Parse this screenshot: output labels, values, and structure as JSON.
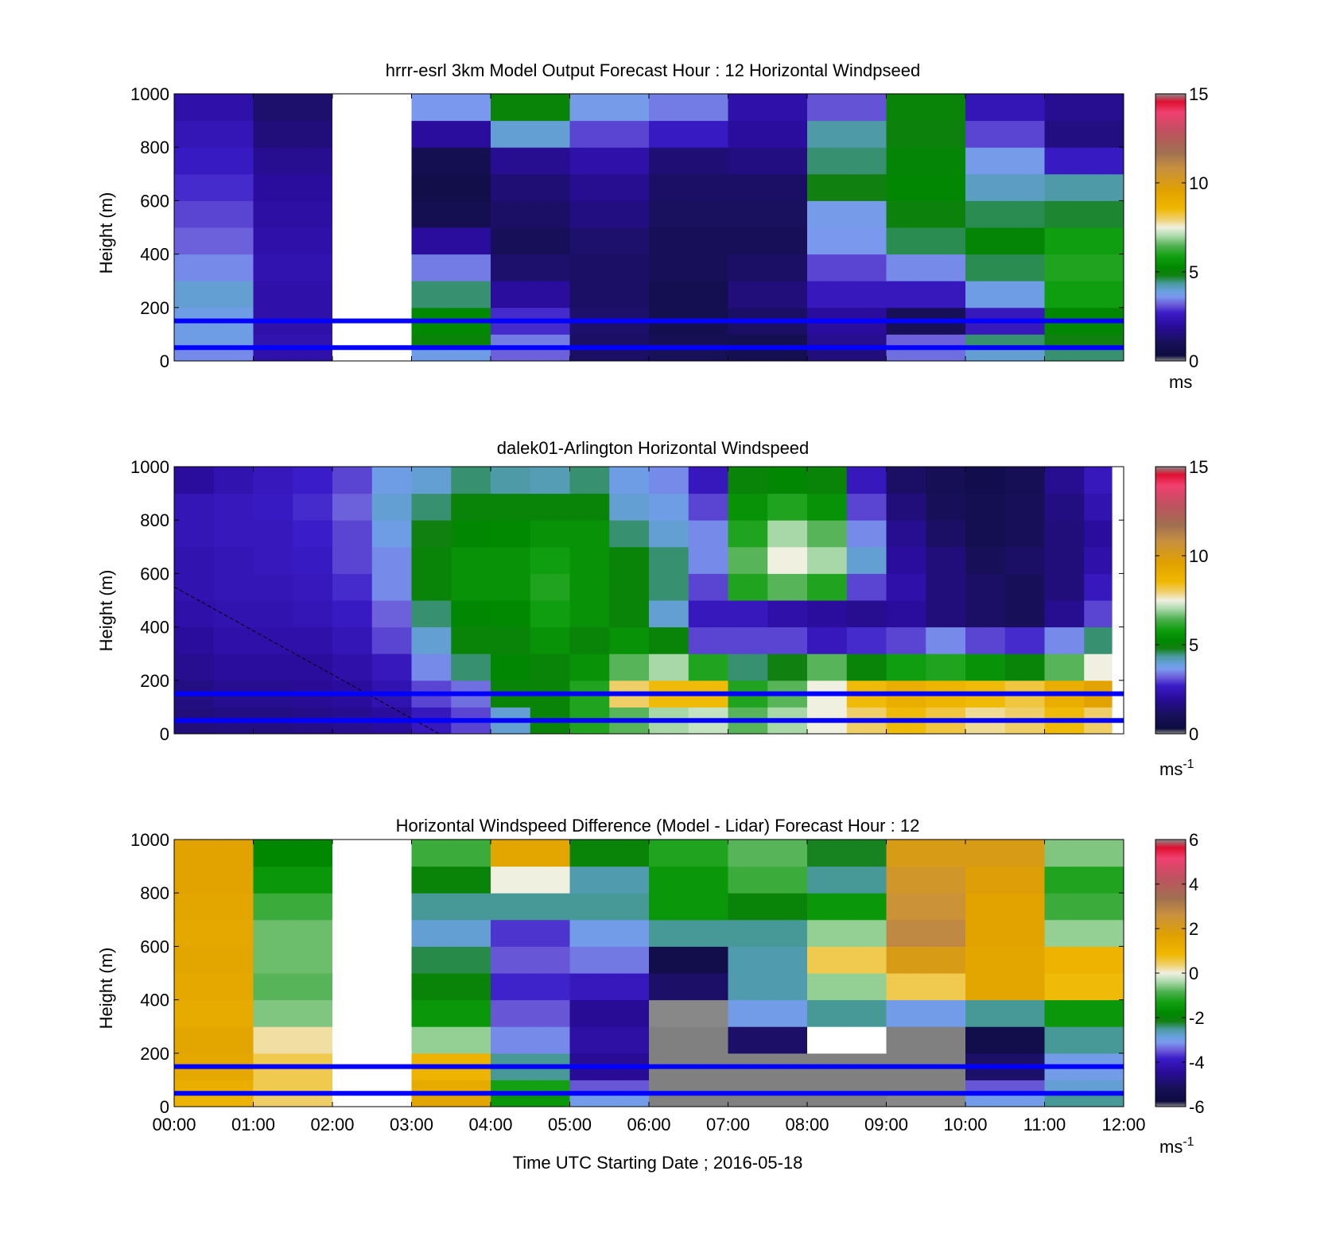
{
  "figure": {
    "date_label": "Time UTC  Starting Date ; 2016-05-18",
    "time_ticks": [
      "00:00",
      "01:00",
      "02:00",
      "03:00",
      "04:00",
      "05:00",
      "06:00",
      "07:00",
      "08:00",
      "09:00",
      "10:00",
      "11:00",
      "12:00"
    ]
  },
  "colors": {
    "reference_lines": "#0000ff",
    "missing_data": "#808080",
    "no_data": "#ffffff"
  },
  "chart_data": [
    {
      "type": "heatmap",
      "title": "hrrr-esrl 3km Model Output   Forecast Hour : 12 Horizontal Windpseed",
      "ylabel": "Height (m)",
      "xlabel": "",
      "xlim": [
        0,
        12
      ],
      "ylim": [
        0,
        1000
      ],
      "y_ticks": [
        "0",
        "200",
        "400",
        "600",
        "800",
        "1000"
      ],
      "grid": false,
      "colorbar": {
        "min": 0,
        "max": 15,
        "ticks": [
          "0",
          "5",
          "10",
          "15"
        ],
        "unit": "ms",
        "unit_sup": ""
      },
      "reference_lines_m": [
        150,
        50
      ],
      "x_blocks_hours": [
        0,
        1,
        2,
        3,
        4,
        5,
        6,
        7,
        8,
        9,
        10,
        11,
        12
      ],
      "y_levels_m": [
        0,
        50,
        100,
        200,
        300,
        400,
        500,
        600,
        700,
        800,
        900,
        1000
      ],
      "values": [
        [
          3.5,
          2.2,
          null,
          3.8,
          3.2,
          1.2,
          1.0,
          0.8,
          1.5,
          3.3,
          4.0,
          4.5
        ],
        [
          3.8,
          2.3,
          null,
          5.0,
          3.4,
          1.2,
          0.9,
          0.8,
          1.8,
          3.2,
          4.5,
          4.8
        ],
        [
          3.8,
          2.2,
          null,
          5.3,
          2.8,
          1.3,
          0.8,
          1.2,
          2.0,
          1.0,
          2.5,
          5.2
        ],
        [
          4.0,
          2.2,
          null,
          4.5,
          2.0,
          1.2,
          0.8,
          1.5,
          2.5,
          2.5,
          3.8,
          5.8
        ],
        [
          3.5,
          2.3,
          null,
          3.4,
          1.3,
          1.2,
          1.0,
          1.2,
          3.0,
          3.5,
          4.6,
          6.0
        ],
        [
          3.2,
          2.2,
          null,
          2.0,
          1.0,
          1.3,
          1.0,
          1.0,
          3.6,
          4.6,
          5.1,
          5.8
        ],
        [
          3.0,
          2.1,
          null,
          0.8,
          1.2,
          1.6,
          1.1,
          1.1,
          3.7,
          4.9,
          4.6,
          4.7
        ],
        [
          2.8,
          2.0,
          null,
          0.6,
          1.4,
          1.8,
          1.2,
          1.2,
          4.8,
          5.2,
          4.1,
          4.3
        ],
        [
          2.6,
          1.8,
          null,
          0.8,
          1.8,
          2.2,
          1.4,
          1.6,
          4.5,
          5.1,
          3.7,
          2.6
        ],
        [
          2.4,
          1.5,
          null,
          2.0,
          4.0,
          3.0,
          2.6,
          2.0,
          4.3,
          4.9,
          3.0,
          1.6
        ],
        [
          2.2,
          1.3,
          null,
          3.6,
          5.0,
          3.7,
          3.4,
          2.2,
          3.1,
          5.0,
          2.4,
          1.8
        ]
      ]
    },
    {
      "type": "heatmap",
      "title": "dalek01-Arlington  Horizontal Windspeed",
      "ylabel": "Height (m)",
      "xlabel": "",
      "xlim": [
        0,
        12
      ],
      "ylim": [
        0,
        1000
      ],
      "y_ticks": [
        "0",
        "200",
        "400",
        "600",
        "800",
        "1000"
      ],
      "grid": false,
      "colorbar": {
        "min": 0,
        "max": 15,
        "ticks": [
          "0",
          "5",
          "10",
          "15"
        ],
        "unit": "ms",
        "unit_sup": "-1"
      },
      "reference_lines_m": [
        150,
        50
      ],
      "data_end_hours": 11.85,
      "dashed_line": {
        "from": [
          0,
          550
        ],
        "to": [
          3.35,
          0
        ]
      },
      "x_hours": [
        0.0,
        0.5,
        1.0,
        1.5,
        2.0,
        2.5,
        3.0,
        3.5,
        4.0,
        4.5,
        5.0,
        5.5,
        6.0,
        6.5,
        7.0,
        7.5,
        8.0,
        8.5,
        9.0,
        9.5,
        10.0,
        10.5,
        11.0,
        11.5
      ],
      "y_levels_m": [
        0,
        100,
        200,
        300,
        400,
        500,
        600,
        700,
        800,
        900,
        1000
      ],
      "values": [
        [
          1.5,
          1.6,
          1.6,
          1.7,
          1.8,
          2.0,
          2.5,
          3.0,
          4.0,
          5.0,
          6.0,
          6.5,
          7.0,
          7.2,
          6.5,
          7.0,
          7.5,
          8.0,
          8.5,
          8.2,
          7.8,
          8.0,
          8.5,
          8.0
        ],
        [
          1.6,
          1.8,
          1.8,
          1.9,
          2.0,
          2.3,
          3.0,
          3.3,
          5.0,
          5.0,
          6.0,
          8.0,
          8.5,
          8.5,
          6.0,
          6.5,
          7.5,
          8.5,
          9.0,
          8.7,
          8.5,
          8.2,
          9.0,
          9.5
        ],
        [
          1.8,
          2.0,
          2.0,
          2.0,
          2.2,
          2.5,
          3.5,
          4.5,
          5.2,
          5.0,
          5.5,
          6.5,
          7.0,
          6.0,
          4.5,
          4.8,
          6.5,
          5.0,
          5.8,
          6.0,
          5.5,
          5.0,
          6.5,
          7.5
        ],
        [
          2.0,
          2.2,
          2.2,
          2.2,
          2.4,
          3.0,
          4.0,
          5.0,
          5.0,
          5.5,
          5.0,
          5.5,
          5.0,
          3.0,
          3.0,
          3.0,
          2.5,
          2.8,
          3.0,
          3.5,
          3.0,
          2.8,
          3.5,
          4.5
        ],
        [
          2.2,
          2.3,
          2.3,
          2.4,
          2.6,
          3.2,
          4.5,
          5.2,
          5.3,
          5.8,
          5.5,
          5.0,
          4.0,
          2.5,
          2.5,
          2.2,
          2.0,
          1.8,
          2.0,
          1.5,
          1.2,
          1.0,
          1.8,
          3.0
        ],
        [
          2.3,
          2.4,
          2.4,
          2.5,
          2.8,
          3.5,
          5.0,
          5.5,
          5.5,
          6.0,
          5.5,
          5.0,
          4.5,
          3.0,
          6.0,
          6.5,
          6.0,
          3.0,
          2.2,
          1.5,
          1.2,
          1.0,
          1.5,
          2.5
        ],
        [
          2.3,
          2.4,
          2.5,
          2.6,
          3.0,
          3.5,
          5.0,
          5.5,
          5.5,
          5.8,
          5.5,
          5.0,
          4.5,
          3.5,
          6.5,
          7.5,
          7.0,
          4.0,
          2.0,
          1.5,
          1.0,
          1.2,
          1.5,
          2.2
        ],
        [
          2.4,
          2.5,
          2.5,
          2.7,
          3.0,
          3.8,
          4.8,
          5.2,
          5.3,
          5.5,
          5.5,
          4.5,
          4.0,
          3.5,
          6.0,
          7.0,
          6.5,
          3.5,
          1.8,
          1.2,
          0.8,
          1.0,
          1.5,
          2.0
        ],
        [
          2.4,
          2.5,
          2.6,
          2.8,
          3.2,
          4.0,
          4.5,
          5.0,
          5.0,
          5.0,
          5.0,
          4.0,
          3.8,
          3.0,
          5.5,
          6.0,
          5.5,
          3.0,
          1.5,
          1.0,
          0.8,
          1.0,
          1.6,
          2.3
        ],
        [
          2.0,
          2.3,
          2.5,
          2.7,
          3.0,
          3.8,
          4.0,
          4.5,
          4.3,
          4.2,
          4.5,
          3.8,
          3.5,
          2.5,
          5.0,
          5.2,
          5.0,
          2.5,
          1.2,
          0.9,
          0.7,
          0.9,
          1.8,
          2.5
        ],
        [
          1.2,
          2.0,
          2.3,
          2.5,
          2.8,
          3.5,
          3.8,
          4.2,
          4.0,
          4.0,
          4.5,
          3.6,
          3.5,
          2.3,
          4.8,
          5.0,
          4.8,
          2.2,
          1.0,
          0.8,
          0.6,
          0.8,
          2.0,
          3.0
        ]
      ]
    },
    {
      "type": "heatmap",
      "title": "Horizontal Windspeed Difference (Model - Lidar) Forecast Hour : 12",
      "ylabel": "Height (m)",
      "xlabel": "Time UTC  Starting Date ; 2016-05-18",
      "xlim": [
        0,
        12
      ],
      "ylim": [
        0,
        1000
      ],
      "y_ticks": [
        "0",
        "200",
        "400",
        "600",
        "800",
        "1000"
      ],
      "grid": false,
      "colorbar": {
        "min": -6,
        "max": 6,
        "ticks": [
          "-6",
          "-4",
          "-2",
          "0",
          "2",
          "4",
          "6"
        ],
        "unit": "ms",
        "unit_sup": "-1"
      },
      "reference_lines_m": [
        150,
        50
      ],
      "x_blocks_hours": [
        0,
        1,
        2,
        3,
        4,
        5,
        6,
        7,
        8,
        9,
        10,
        11,
        12
      ],
      "y_levels_m": [
        0,
        50,
        100,
        200,
        300,
        400,
        500,
        600,
        700,
        800,
        900,
        1000
      ],
      "values": [
        [
          1.0,
          0.4,
          null,
          1.5,
          -1.5,
          -3.0,
          -6.5,
          -7.0,
          -7.0,
          -6.0,
          -3.0,
          -2.5
        ],
        [
          1.2,
          0.5,
          null,
          1.3,
          -1.3,
          -3.5,
          -7.0,
          -7.0,
          -7.0,
          -7.0,
          -3.5,
          -2.8
        ],
        [
          1.4,
          0.5,
          null,
          1.0,
          -2.5,
          -4.5,
          -7.0,
          -7.0,
          -7.0,
          -7.0,
          -5.0,
          -3.0
        ],
        [
          1.5,
          0.2,
          null,
          -0.5,
          -3.2,
          -4.3,
          -7.0,
          -5.0,
          null,
          -7.0,
          -5.5,
          -2.5
        ],
        [
          1.3,
          -0.6,
          null,
          -1.5,
          -3.5,
          -4.5,
          -6.0,
          -3.0,
          -2.5,
          -3.0,
          -2.5,
          -1.5
        ],
        [
          1.4,
          -0.8,
          null,
          -2.0,
          -3.8,
          -4.0,
          -5.0,
          -2.6,
          -0.5,
          0.5,
          1.5,
          0.8
        ],
        [
          1.5,
          -0.7,
          null,
          -2.3,
          -3.5,
          -3.3,
          -5.5,
          -2.6,
          0.5,
          2.0,
          1.5,
          1.0
        ],
        [
          1.4,
          -0.7,
          null,
          -2.8,
          -3.7,
          -3.0,
          -2.5,
          -2.5,
          -0.5,
          2.8,
          1.6,
          -0.5
        ],
        [
          1.5,
          -1.0,
          null,
          -2.5,
          -2.5,
          -2.5,
          -1.5,
          -2.0,
          -1.5,
          2.5,
          1.6,
          -1.0
        ],
        [
          1.6,
          -1.5,
          null,
          -2.0,
          0.0,
          -2.6,
          -1.5,
          -1.0,
          -2.5,
          2.3,
          1.8,
          -1.2
        ],
        [
          1.6,
          -1.8,
          null,
          -1.0,
          1.5,
          -2.0,
          -1.2,
          -0.8,
          -2.2,
          2.0,
          2.0,
          -0.6
        ]
      ]
    }
  ]
}
